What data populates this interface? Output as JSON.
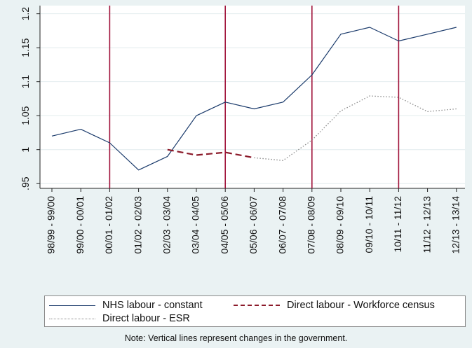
{
  "chart_data": {
    "type": "line",
    "categories": [
      "98/99 - 99/00",
      "99/00 - 00/01",
      "00/01 - 01/02",
      "01/02 - 02/03",
      "02/03 - 03/04",
      "03/04 - 04/05",
      "04/05 - 05/06",
      "05/06 - 06/07",
      "06/07 - 07/08",
      "07/08 - 08/09",
      "08/09 - 09/10",
      "09/10 - 10/11",
      "10/11 - 11/12",
      "11/12 - 12/13",
      "12/13 - 13/14"
    ],
    "series": [
      {
        "name": "NHS labour - constant",
        "style": "solid",
        "color": "#1a3a6b",
        "values": [
          1.02,
          1.03,
          1.01,
          0.97,
          0.99,
          1.05,
          1.07,
          1.06,
          1.07,
          1.11,
          1.17,
          1.18,
          1.16,
          1.17,
          1.18
        ]
      },
      {
        "name": "Direct labour - Workforce census",
        "style": "dashed",
        "color": "#8b1a2a",
        "values": [
          null,
          null,
          null,
          null,
          1.0,
          0.992,
          0.996,
          0.988,
          null,
          null,
          null,
          null,
          null,
          null,
          null
        ]
      },
      {
        "name": "Direct labour - ESR",
        "style": "dotted",
        "color": "#8a8a8a",
        "values": [
          null,
          null,
          null,
          null,
          null,
          null,
          null,
          0.988,
          0.984,
          1.014,
          1.057,
          1.079,
          1.077,
          1.056,
          1.06
        ]
      }
    ],
    "yticks": [
      0.95,
      1,
      1.05,
      1.1,
      1.15,
      1.2
    ],
    "ytick_labels": [
      ".95",
      "1",
      "1.05",
      "1.1",
      "1.15",
      "1.2"
    ],
    "ylim": [
      0.943,
      1.212
    ],
    "vlines": [
      "00/01 - 01/02",
      "04/05 - 05/06",
      "07/08 - 08/09",
      "10/11 - 11/12"
    ],
    "vline_color": "#a0123a",
    "grid": "horizontal",
    "legend_position": "bottom",
    "note": "Note: Vertical lines represent changes in the government."
  }
}
